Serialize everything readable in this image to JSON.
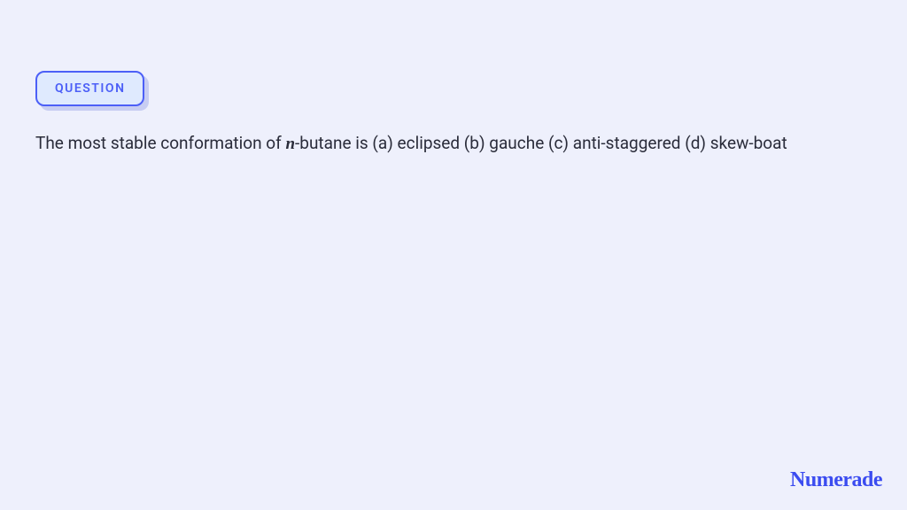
{
  "colors": {
    "page_bg": "#eef0fc",
    "badge_bg": "#dfeafe",
    "badge_border": "#4c5ff7",
    "badge_shadow": "#c7cdf2",
    "badge_text": "#4c5ff7",
    "body_text": "#2a2c3a",
    "brand_text": "#3b4cf0"
  },
  "badge": {
    "label": "QUESTION"
  },
  "question": {
    "prefix": "The most stable conformation of ",
    "variable": "n",
    "suffix": "-butane is (a) eclipsed (b) gauche (c) anti-staggered (d) skew-boat"
  },
  "brand": {
    "name": "Numerade"
  }
}
